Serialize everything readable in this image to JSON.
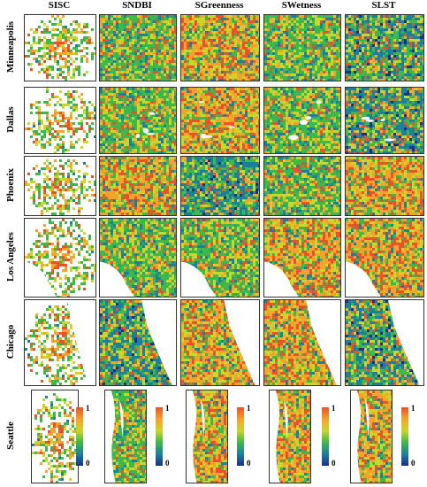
{
  "columns": [
    "SISC",
    "SNDBI",
    "SGreenness",
    "SWetness",
    "SLST"
  ],
  "rows": [
    "Minneapolis",
    "Dallas",
    "Phoenix",
    "Los Angeles",
    "Chicago",
    "Seattle"
  ],
  "colorbar": {
    "max_label": "1",
    "min_label": "0"
  },
  "colors": {
    "high": "#e8532a",
    "mid_high": "#f5a32b",
    "mid": "#c9d72a",
    "mid_low": "#3db84a",
    "low": "#1e7f9c",
    "lowest": "#1a2f8a"
  },
  "panel_styles": {
    "Minneapolis": [
      "sisc",
      "mix-green",
      "mix-orange",
      "mix-green",
      "mix-blue"
    ],
    "Dallas": [
      "sisc",
      "mix-green",
      "mix-orange",
      "mix-green",
      "mix-blue"
    ],
    "Phoenix": [
      "sisc",
      "mix-orange",
      "mix-blue",
      "mix-green",
      "mix-orange"
    ],
    "Los Angeles": [
      "sisc",
      "mix-green",
      "mix-green",
      "mix-orange",
      "mix-orange"
    ],
    "Chicago": [
      "sisc",
      "mix-blue",
      "mix-orange",
      "mix-orange",
      "mix-blue"
    ],
    "Seattle": [
      "sisc",
      "mix-green",
      "mix-orange",
      "mix-orange",
      "mix-orange"
    ]
  }
}
